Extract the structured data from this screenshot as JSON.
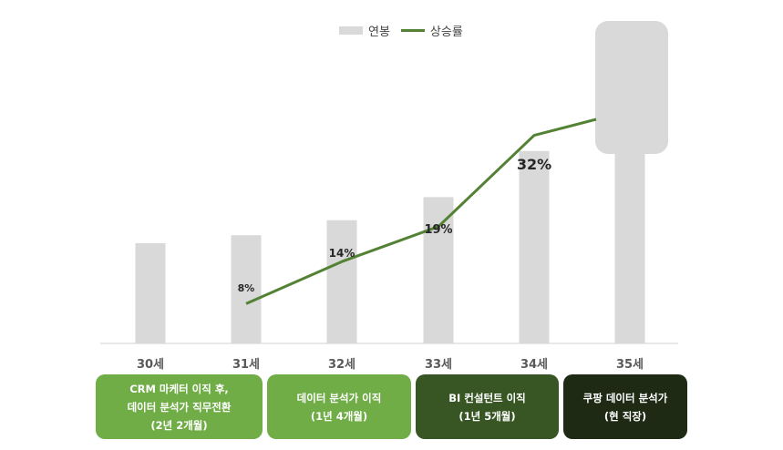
{
  "legend": {
    "bar_label": "연봉",
    "line_label": "상승률"
  },
  "chart_data": {
    "type": "bar",
    "categories": [
      "30세",
      "31세",
      "32세",
      "33세",
      "34세",
      "35세"
    ],
    "series": [
      {
        "name": "연봉",
        "type": "bar",
        "values": [
          100,
          108,
          123,
          146,
          192,
          null
        ],
        "hidden_last_value": true
      },
      {
        "name": "상승률",
        "type": "line",
        "values": [
          null,
          8,
          14,
          19,
          32,
          null
        ]
      }
    ],
    "data_labels": [
      "",
      "8%",
      "14%",
      "19%",
      "32%",
      ""
    ],
    "colors": {
      "bar": "#d9d9d9",
      "line": "#548235"
    },
    "legend_position": "top-center",
    "grid": false
  },
  "cards": [
    {
      "lines": [
        "CRM 마케터 이직 후,",
        "데이터 분석가 직무전환",
        "(2년 2개월)"
      ],
      "color": "#70ad47"
    },
    {
      "lines": [
        "데이터 분석가 이직",
        "(1년 4개월)"
      ],
      "color": "#70ad47"
    },
    {
      "lines": [
        "BI 컨설턴트 이직",
        "(1년 5개월)"
      ],
      "color": "#375623"
    },
    {
      "lines": [
        "쿠팡 데이터 분석가",
        "(현 직장)"
      ],
      "color": "#1e2a14"
    }
  ]
}
